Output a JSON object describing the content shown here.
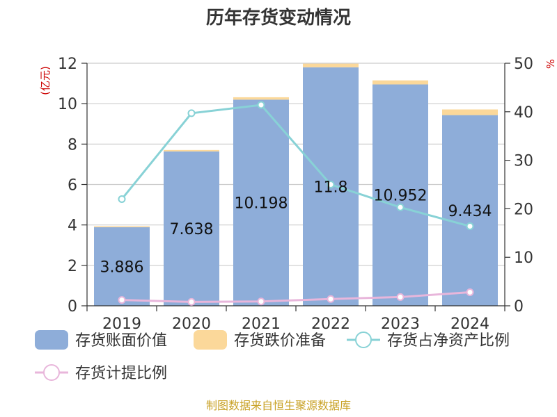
{
  "title": "历年存货变动情况",
  "source": "制图数据来自恒生聚源数据库",
  "left_unit": "(亿元)",
  "right_unit": "%",
  "colors": {
    "book_value": "#8eadd9",
    "impairment": "#fbd89a",
    "inventory_ratio": "#88d2d6",
    "provision_ratio": "#e8b6db",
    "unit": "#cc0000",
    "source": "#c9a227"
  },
  "legend": [
    {
      "label": "存货账面价值",
      "kind": "bar",
      "color_key": "book_value"
    },
    {
      "label": "存货跌价准备",
      "kind": "bar",
      "color_key": "impairment"
    },
    {
      "label": "存货占净资产比例",
      "kind": "line",
      "color_key": "inventory_ratio"
    },
    {
      "label": "存货计提比例",
      "kind": "line",
      "color_key": "provision_ratio"
    }
  ],
  "chart_data": {
    "type": "bar",
    "categories": [
      "2019",
      "2020",
      "2021",
      "2022",
      "2023",
      "2024"
    ],
    "series": [
      {
        "name": "存货账面价值",
        "type": "bar",
        "stack": "inventory",
        "axis": "left",
        "values": [
          3.886,
          7.638,
          10.198,
          11.8,
          10.952,
          9.434
        ],
        "labels": [
          "3.886",
          "7.638",
          "10.198",
          "11.8",
          "10.952",
          "9.434"
        ]
      },
      {
        "name": "存货跌价准备",
        "type": "bar",
        "stack": "inventory",
        "axis": "left",
        "values": [
          0.05,
          0.07,
          0.12,
          0.18,
          0.2,
          0.28
        ]
      },
      {
        "name": "存货占净资产比例",
        "type": "line",
        "axis": "right",
        "values": [
          22,
          39.7,
          41.4,
          25,
          20.3,
          16.4
        ]
      },
      {
        "name": "存货计提比例",
        "type": "line",
        "axis": "right",
        "values": [
          1.2,
          0.8,
          0.9,
          1.4,
          1.8,
          2.8
        ]
      }
    ],
    "left_axis": {
      "min": 0,
      "max": 12,
      "ticks": [
        0,
        2,
        4,
        6,
        8,
        10,
        12
      ]
    },
    "right_axis": {
      "min": 0,
      "max": 50,
      "ticks": [
        0,
        10,
        20,
        30,
        40,
        50
      ]
    },
    "grid": true,
    "legend_position": "bottom"
  }
}
